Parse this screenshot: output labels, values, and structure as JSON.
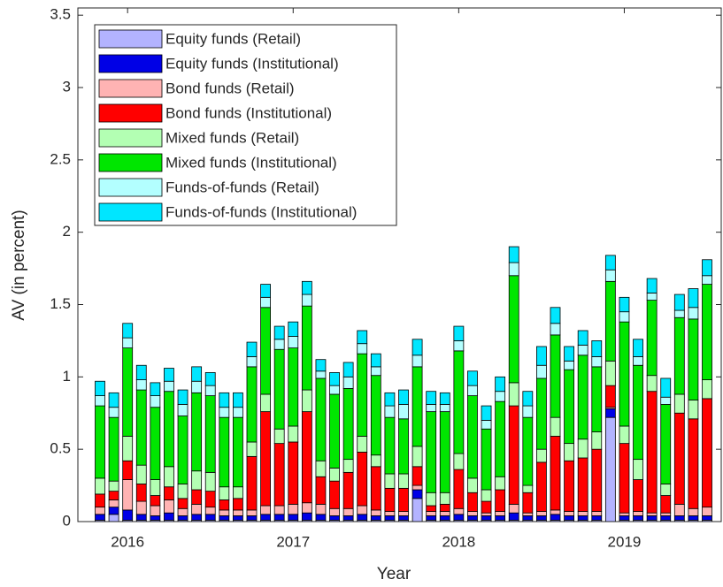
{
  "chart_data": {
    "type": "stacked_bar",
    "xlabel": "Year",
    "ylabel": "AV (in percent)",
    "categories": [
      null,
      null,
      "2016",
      null,
      null,
      null,
      null,
      null,
      null,
      null,
      null,
      null,
      null,
      null,
      "2017",
      null,
      null,
      null,
      null,
      null,
      null,
      null,
      null,
      null,
      null,
      null,
      "2018",
      null,
      null,
      null,
      null,
      null,
      null,
      null,
      null,
      null,
      null,
      null,
      "2019",
      null,
      null,
      null,
      null,
      null,
      null
    ],
    "ylim": [
      0,
      3.55
    ],
    "yticks": [
      0,
      0.5,
      1,
      1.5,
      2,
      2.5,
      3,
      3.5
    ],
    "grid": false,
    "legend": "upper left",
    "series": [
      {
        "name": "Equity funds (Retail)",
        "color": "#b3b3ff",
        "values": [
          0.01,
          0.05,
          0.01,
          0.01,
          0.01,
          0.01,
          0.01,
          0.01,
          0.01,
          0.01,
          0.01,
          0.01,
          0.01,
          0.01,
          0.01,
          0.01,
          0.01,
          0.01,
          0.01,
          0.01,
          0.01,
          0.01,
          0.01,
          0.16,
          0.01,
          0.01,
          0.01,
          0.01,
          0.01,
          0.01,
          0.01,
          0.01,
          0.01,
          0.01,
          0.01,
          0.01,
          0.01,
          0.72,
          0.01,
          0.01,
          0.01,
          0.01,
          0.01,
          0.01,
          0.01
        ]
      },
      {
        "name": "Equity funds (Institutional)",
        "color": "#0000e6",
        "values": [
          0.04,
          0.05,
          0.07,
          0.04,
          0.03,
          0.05,
          0.03,
          0.04,
          0.04,
          0.03,
          0.03,
          0.03,
          0.04,
          0.04,
          0.04,
          0.05,
          0.04,
          0.03,
          0.03,
          0.04,
          0.03,
          0.03,
          0.03,
          0.06,
          0.03,
          0.03,
          0.04,
          0.03,
          0.03,
          0.03,
          0.05,
          0.03,
          0.03,
          0.04,
          0.03,
          0.03,
          0.03,
          0.06,
          0.03,
          0.03,
          0.03,
          0.03,
          0.03,
          0.03,
          0.03
        ]
      },
      {
        "name": "Bond funds (Retail)",
        "color": "#ffb3b3",
        "values": [
          0.05,
          0.05,
          0.21,
          0.09,
          0.07,
          0.09,
          0.05,
          0.07,
          0.05,
          0.04,
          0.04,
          0.04,
          0.06,
          0.06,
          0.07,
          0.07,
          0.07,
          0.05,
          0.05,
          0.06,
          0.04,
          0.03,
          0.03,
          0.03,
          0.03,
          0.03,
          0.04,
          0.03,
          0.02,
          0.03,
          0.06,
          0.02,
          0.03,
          0.03,
          0.03,
          0.03,
          0.03,
          0.01,
          0.02,
          0.03,
          0.02,
          0.02,
          0.08,
          0.05,
          0.06
        ]
      },
      {
        "name": "Bond funds (Institutional)",
        "color": "#ff0000",
        "values": [
          0.09,
          0.06,
          0.13,
          0.12,
          0.07,
          0.09,
          0.07,
          0.1,
          0.11,
          0.07,
          0.08,
          0.37,
          0.65,
          0.43,
          0.43,
          0.63,
          0.19,
          0.19,
          0.25,
          0.37,
          0.3,
          0.16,
          0.16,
          0.13,
          0.04,
          0.05,
          0.27,
          0.13,
          0.08,
          0.15,
          0.68,
          0.14,
          0.34,
          0.51,
          0.35,
          0.37,
          0.43,
          0.15,
          0.48,
          0.22,
          0.84,
          0.12,
          0.63,
          0.62,
          0.75
        ]
      },
      {
        "name": "Mixed funds (Retail)",
        "color": "#b3ffb3",
        "values": [
          0.11,
          0.07,
          0.17,
          0.13,
          0.11,
          0.14,
          0.1,
          0.13,
          0.13,
          0.09,
          0.08,
          0.1,
          0.12,
          0.1,
          0.11,
          0.15,
          0.11,
          0.09,
          0.09,
          0.11,
          0.08,
          0.1,
          0.1,
          0.14,
          0.09,
          0.08,
          0.11,
          0.1,
          0.08,
          0.09,
          0.16,
          0.05,
          0.09,
          0.13,
          0.12,
          0.13,
          0.12,
          0.17,
          0.12,
          0.14,
          0.11,
          0.08,
          0.13,
          0.13,
          0.13
        ]
      },
      {
        "name": "Mixed funds (Institutional)",
        "color": "#00e600",
        "values": [
          0.5,
          0.44,
          0.61,
          0.52,
          0.5,
          0.52,
          0.47,
          0.54,
          0.53,
          0.48,
          0.48,
          0.52,
          0.6,
          0.55,
          0.54,
          0.58,
          0.57,
          0.51,
          0.49,
          0.57,
          0.55,
          0.39,
          0.38,
          0.55,
          0.56,
          0.56,
          0.71,
          0.57,
          0.42,
          0.52,
          0.74,
          0.47,
          0.49,
          0.57,
          0.51,
          0.58,
          0.45,
          0.55,
          0.72,
          0.65,
          0.52,
          0.55,
          0.53,
          0.56,
          0.66
        ]
      },
      {
        "name": "Funds-of-funds (Retail)",
        "color": "#b3ffff",
        "values": [
          0.07,
          0.07,
          0.07,
          0.07,
          0.08,
          0.07,
          0.08,
          0.08,
          0.07,
          0.07,
          0.07,
          0.07,
          0.07,
          0.07,
          0.08,
          0.08,
          0.05,
          0.06,
          0.08,
          0.07,
          0.06,
          0.08,
          0.1,
          0.08,
          0.05,
          0.05,
          0.07,
          0.07,
          0.06,
          0.07,
          0.09,
          0.08,
          0.09,
          0.08,
          0.06,
          0.07,
          0.07,
          0.08,
          0.07,
          0.06,
          0.05,
          0.05,
          0.05,
          0.08,
          0.06
        ]
      },
      {
        "name": "Funds-of-funds (Institutional)",
        "color": "#00e6ff",
        "values": [
          0.1,
          0.1,
          0.1,
          0.1,
          0.09,
          0.09,
          0.1,
          0.1,
          0.09,
          0.1,
          0.1,
          0.1,
          0.09,
          0.09,
          0.1,
          0.09,
          0.08,
          0.09,
          0.1,
          0.09,
          0.09,
          0.09,
          0.1,
          0.11,
          0.09,
          0.08,
          0.1,
          0.1,
          0.1,
          0.1,
          0.11,
          0.1,
          0.13,
          0.11,
          0.1,
          0.1,
          0.11,
          0.1,
          0.1,
          0.12,
          0.1,
          0.13,
          0.11,
          0.13,
          0.11
        ]
      }
    ]
  }
}
